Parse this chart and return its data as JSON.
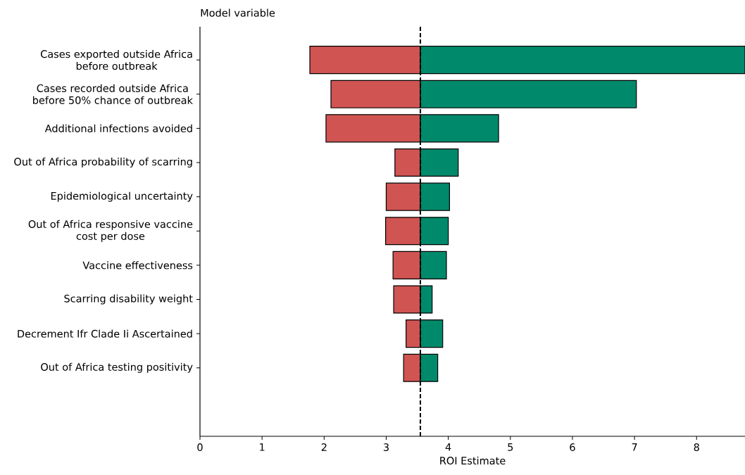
{
  "chart_data": {
    "type": "bar",
    "orientation": "horizontal",
    "xlabel": "ROI Estimate",
    "ylabel": "Model variable",
    "categories": [
      "Cases exported outside Africa before outbreak",
      "Cases recorded outside Africa before 50% chance of outbreak",
      "Additional infections avoided",
      "Out of Africa probability of scarring",
      "Epidemiological uncertainty",
      "Out of Africa responsive vaccine cost per dose",
      "Vaccine effectiveness",
      "Scarring disability weight",
      "Decrement Ifr Clade Ii Ascertained",
      "Out of Africa testing positivity"
    ],
    "series": [
      {
        "color": "#d05452",
        "base": [
          1.77,
          2.11,
          2.03,
          3.14,
          3.0,
          2.99,
          3.11,
          3.12,
          3.32,
          3.28
        ],
        "values": [
          1.78,
          1.44,
          1.52,
          0.41,
          0.55,
          0.56,
          0.44,
          0.43,
          0.23,
          0.27
        ]
      },
      {
        "color": "#00896b",
        "base": [
          3.55,
          3.55,
          3.55,
          3.55,
          3.55,
          3.55,
          3.55,
          3.55,
          3.55,
          3.55
        ],
        "values": [
          5.23,
          3.48,
          1.26,
          0.61,
          0.47,
          0.45,
          0.42,
          0.19,
          0.36,
          0.28
        ]
      }
    ],
    "xlim": [
      0,
      8.78
    ],
    "xticks": [
      0,
      1,
      2,
      3,
      4,
      5,
      6,
      7,
      8
    ],
    "ref_lines": [
      {
        "axis": "x",
        "value": 3.55,
        "color": "#000000",
        "line_style": "dashed"
      }
    ]
  }
}
